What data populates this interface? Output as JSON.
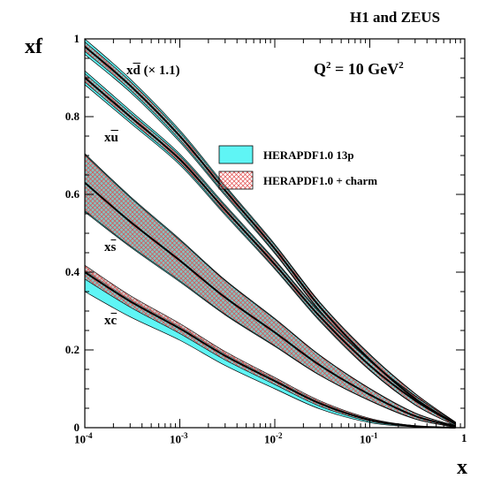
{
  "header": {
    "collaboration": "H1 and ZEUS",
    "scale_label": "Q",
    "scale_value": " = 10 GeV"
  },
  "axes": {
    "ylabel": "xf",
    "xlabel": "x",
    "y_ticks": [
      "0",
      "0.2",
      "0.4",
      "0.6",
      "0.8",
      "1"
    ],
    "x_ticks": [
      {
        "base": "10",
        "exp": "-4"
      },
      {
        "base": "10",
        "exp": "-3"
      },
      {
        "base": "10",
        "exp": "-2"
      },
      {
        "base": "10",
        "exp": "-1"
      },
      {
        "base": "1",
        "exp": ""
      }
    ]
  },
  "curve_labels": {
    "dbar": {
      "prefix": "x",
      "flavor": "d",
      "suffix": " (× 1.1)"
    },
    "ubar": {
      "prefix": "x",
      "flavor": "u"
    },
    "sbar": {
      "prefix": "x",
      "flavor": "s"
    },
    "cbar": {
      "prefix": "x",
      "flavor": "c"
    }
  },
  "legend": {
    "entry_13p": "HERAPDF1.0 13p",
    "entry_charm": "HERAPDF1.0 + charm"
  },
  "colors": {
    "band_13p": "#5ff5f5",
    "band_charm_hatch": "#e04a4a",
    "central": "#000000"
  },
  "chart_data": {
    "type": "line",
    "xscale": "log",
    "xlim": [
      0.0001,
      1
    ],
    "ylim": [
      0,
      1
    ],
    "grid": false,
    "legend_position": "top-right",
    "x": [
      0.0001,
      0.0003,
      0.001,
      0.003,
      0.01,
      0.03,
      0.1,
      0.3,
      0.8
    ],
    "series": [
      {
        "name": "dbar",
        "central": [
          0.98,
          0.88,
          0.75,
          0.61,
          0.46,
          0.31,
          0.175,
          0.075,
          0.01
        ],
        "band_13p_half": [
          0.02,
          0.017,
          0.015,
          0.013,
          0.012,
          0.012,
          0.014,
          0.013,
          0.004
        ],
        "band_charm_half": [
          0.012,
          0.011,
          0.01,
          0.009,
          0.009,
          0.01,
          0.012,
          0.012,
          0.004
        ]
      },
      {
        "name": "ubar",
        "central": [
          0.9,
          0.8,
          0.69,
          0.56,
          0.42,
          0.285,
          0.16,
          0.07,
          0.009
        ],
        "band_13p_half": [
          0.018,
          0.016,
          0.014,
          0.013,
          0.012,
          0.012,
          0.013,
          0.012,
          0.004
        ],
        "band_charm_half": [
          0.011,
          0.01,
          0.009,
          0.009,
          0.009,
          0.009,
          0.011,
          0.011,
          0.004
        ]
      },
      {
        "name": "sbar",
        "central": [
          0.63,
          0.53,
          0.43,
          0.335,
          0.245,
          0.16,
          0.085,
          0.03,
          0.003
        ],
        "band_13p_half": [
          0.075,
          0.065,
          0.055,
          0.045,
          0.036,
          0.026,
          0.016,
          0.008,
          0.002
        ],
        "band_charm_half": [
          0.072,
          0.062,
          0.052,
          0.043,
          0.034,
          0.025,
          0.015,
          0.007,
          0.002
        ]
      },
      {
        "name": "cbar",
        "central": [
          0.4,
          0.325,
          0.255,
          0.185,
          0.12,
          0.062,
          0.02,
          0.004,
          0.0
        ],
        "band_13p_low": [
          0.35,
          0.285,
          0.225,
          0.16,
          0.1,
          0.048,
          0.013,
          0.002,
          0.0
        ],
        "band_13p_high": [
          0.405,
          0.33,
          0.26,
          0.19,
          0.125,
          0.066,
          0.022,
          0.005,
          0.0
        ],
        "band_charm_half": [
          0.018,
          0.015,
          0.013,
          0.011,
          0.009,
          0.007,
          0.004,
          0.001,
          0.0
        ]
      }
    ]
  }
}
